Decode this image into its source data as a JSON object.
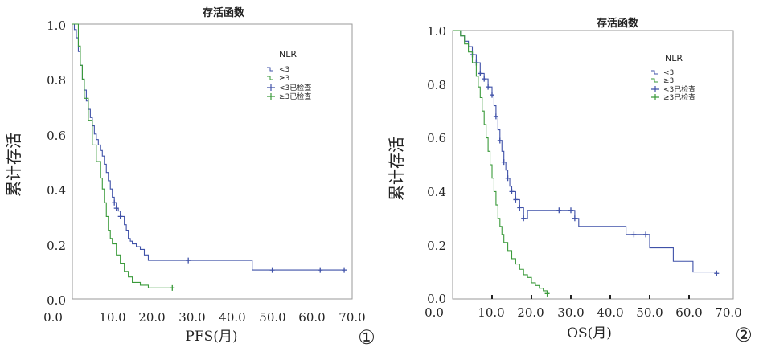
{
  "chart_data": [
    {
      "type": "line",
      "step": true,
      "title": "存活函数",
      "xlabel": "PFS(月)",
      "ylabel": "累计存活",
      "panel_label": "①",
      "xlim": [
        0,
        70
      ],
      "ylim": [
        0,
        1
      ],
      "xticks": [
        "10.0",
        "20.0",
        "30.0",
        "40.0",
        "50.0",
        "60.0",
        "70.0"
      ],
      "yticks": [
        "0.0",
        "0.2",
        "0.4",
        "0.6",
        "0.8",
        "1.0"
      ],
      "legend": {
        "title": "NLR",
        "position": "top-right",
        "entries": [
          "<3",
          "≥3",
          "<3已检查",
          "≥3已检查"
        ]
      },
      "series": [
        {
          "name": "<3",
          "color": "#3f51a8",
          "x": [
            0,
            0.5,
            1,
            1.5,
            2,
            2.5,
            3,
            3.5,
            4,
            4.5,
            5,
            5.5,
            6,
            6.5,
            7,
            7.5,
            8,
            8.5,
            9,
            9.5,
            10,
            10.5,
            11,
            11.5,
            12,
            13,
            13.5,
            14,
            14.5,
            15,
            16,
            17,
            18,
            19,
            45,
            68
          ],
          "y": [
            1.0,
            0.98,
            0.95,
            0.9,
            0.85,
            0.8,
            0.76,
            0.72,
            0.69,
            0.66,
            0.63,
            0.6,
            0.58,
            0.56,
            0.54,
            0.52,
            0.49,
            0.46,
            0.43,
            0.4,
            0.37,
            0.35,
            0.33,
            0.32,
            0.3,
            0.27,
            0.25,
            0.22,
            0.21,
            0.2,
            0.19,
            0.18,
            0.16,
            0.14,
            0.105,
            0.105
          ],
          "censored_x": [
            10.5,
            11,
            12,
            29,
            50,
            62,
            68
          ]
        },
        {
          "name": "≥3",
          "color": "#3a9a3a",
          "x": [
            0,
            1,
            1.5,
            2,
            2.5,
            3,
            4,
            5,
            6,
            7,
            7.5,
            8,
            8.5,
            9,
            9.5,
            10,
            11,
            12,
            13,
            14,
            15,
            17,
            19,
            25
          ],
          "y": [
            1.0,
            1.0,
            0.92,
            0.85,
            0.8,
            0.73,
            0.65,
            0.56,
            0.5,
            0.44,
            0.4,
            0.35,
            0.3,
            0.25,
            0.22,
            0.2,
            0.16,
            0.13,
            0.1,
            0.08,
            0.06,
            0.05,
            0.04,
            0.04
          ],
          "censored_x": [
            25
          ]
        }
      ]
    },
    {
      "type": "line",
      "step": true,
      "title": "存活函数",
      "xlabel": "OS(月)",
      "ylabel": "累计存活",
      "panel_label": "②",
      "xlim": [
        0,
        70
      ],
      "ylim": [
        0,
        1
      ],
      "xticks": [
        "10.0",
        "20.0",
        "30.0",
        "40.0",
        "50.0",
        "60.0",
        "70.0"
      ],
      "yticks": [
        "0.0",
        "0.2",
        "0.4",
        "0.6",
        "0.8",
        "1.0"
      ],
      "legend": {
        "title": "NLR",
        "position": "top-right",
        "entries": [
          "<3",
          "≥3",
          "<3已检查",
          "≥3已检查"
        ]
      },
      "series": [
        {
          "name": "<3",
          "color": "#3f51a8",
          "x": [
            0,
            2,
            3,
            4,
            5,
            6,
            7,
            8,
            9,
            10,
            10.5,
            11,
            11.5,
            12,
            12.5,
            13,
            13.5,
            14,
            14.5,
            15,
            16,
            17,
            18,
            19,
            31,
            32,
            44,
            50,
            56,
            61,
            67
          ],
          "y": [
            1.0,
            0.98,
            0.96,
            0.94,
            0.91,
            0.88,
            0.84,
            0.82,
            0.79,
            0.76,
            0.72,
            0.68,
            0.63,
            0.59,
            0.55,
            0.51,
            0.48,
            0.45,
            0.42,
            0.4,
            0.37,
            0.34,
            0.3,
            0.33,
            0.3,
            0.27,
            0.24,
            0.19,
            0.14,
            0.1,
            0.095
          ],
          "censored_x": [
            5,
            6,
            7,
            8,
            9,
            10,
            11,
            12,
            13,
            14,
            15,
            16,
            17,
            18,
            27,
            30,
            31,
            46,
            49,
            67
          ]
        },
        {
          "name": "≥3",
          "color": "#3a9a3a",
          "x": [
            0,
            2,
            3,
            4,
            5,
            6,
            6.5,
            7,
            7.5,
            8,
            8.5,
            9,
            9.5,
            10,
            10.5,
            11,
            11.5,
            12,
            12.5,
            13,
            14,
            15,
            16,
            17,
            18,
            19,
            20,
            21,
            22,
            23,
            24
          ],
          "y": [
            1.0,
            0.98,
            0.95,
            0.92,
            0.88,
            0.83,
            0.79,
            0.75,
            0.7,
            0.65,
            0.6,
            0.55,
            0.5,
            0.45,
            0.4,
            0.35,
            0.3,
            0.27,
            0.24,
            0.21,
            0.18,
            0.15,
            0.13,
            0.11,
            0.09,
            0.08,
            0.06,
            0.05,
            0.04,
            0.03,
            0.02
          ],
          "censored_x": [
            24
          ]
        }
      ]
    }
  ]
}
